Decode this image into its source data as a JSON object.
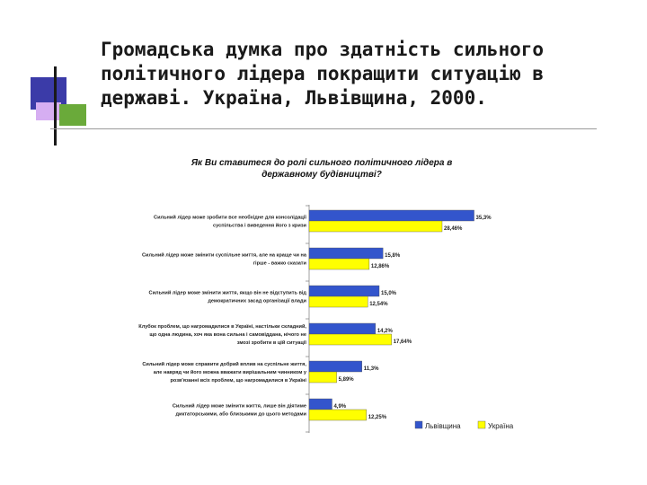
{
  "slide": {
    "title": "Громадська думка про здатність сильного політичного лідера покращити ситуацію в державі. Україна, Львівщина, 2000."
  },
  "colors": {
    "lviv": "#3355cc",
    "ukraine": "#ffff00",
    "deco_blue": "#3b3ba8",
    "deco_lilac": "#cc99ee",
    "deco_green": "#66aa33"
  },
  "chart_data": {
    "type": "bar",
    "orientation": "horizontal",
    "title": [
      "Як Ви ставитеся до ролі сильного політичного лідера в",
      "державному будівництві?"
    ],
    "xlim": [
      0,
      40
    ],
    "categories": [
      [
        "Сильний лідер може зробити все необхідне для консолідації",
        "суспільства і виведення його з кризи"
      ],
      [
        "Сильний лідер може змінити суспільне життя, але на краще чи на",
        "гірше - важко сказати"
      ],
      [
        "Сильний лідер може змінити життя, якщо він не відступить від",
        "демократичних засад організації влади"
      ],
      [
        "Клубок проблем, що нагромадилися в Україні, настільки складний,",
        "що одна людина, хоч яка вона сильна і самовіддана, нічого не",
        "змозі зробити в цій ситуації"
      ],
      [
        "Сильний лідер може справити добрий вплив на суспільне життя,",
        "але навряд чи його можна вважати вирішальним чинником у",
        "розв'язанні всіх проблем, що нагромадилися в Україні"
      ],
      [
        "Сильний лідер може змінити життя, лише він діятиме",
        "диктаторськими, або близькими до цього методами"
      ]
    ],
    "series": [
      {
        "name": "Львівщина",
        "values": [
          35.3,
          15.8,
          15.0,
          14.2,
          11.3,
          4.9
        ],
        "labels": [
          "35,3%",
          "15,8%",
          "15,0%",
          "14,2%",
          "11,3%",
          "4,9%"
        ]
      },
      {
        "name": "Україна",
        "values": [
          28.46,
          12.86,
          12.54,
          17.64,
          5.89,
          12.25
        ],
        "labels": [
          "28,46%",
          "12,86%",
          "12,54%",
          "17,64%",
          "5,89%",
          "12,25%"
        ]
      }
    ],
    "legend": {
      "position": "bottom-right"
    }
  }
}
